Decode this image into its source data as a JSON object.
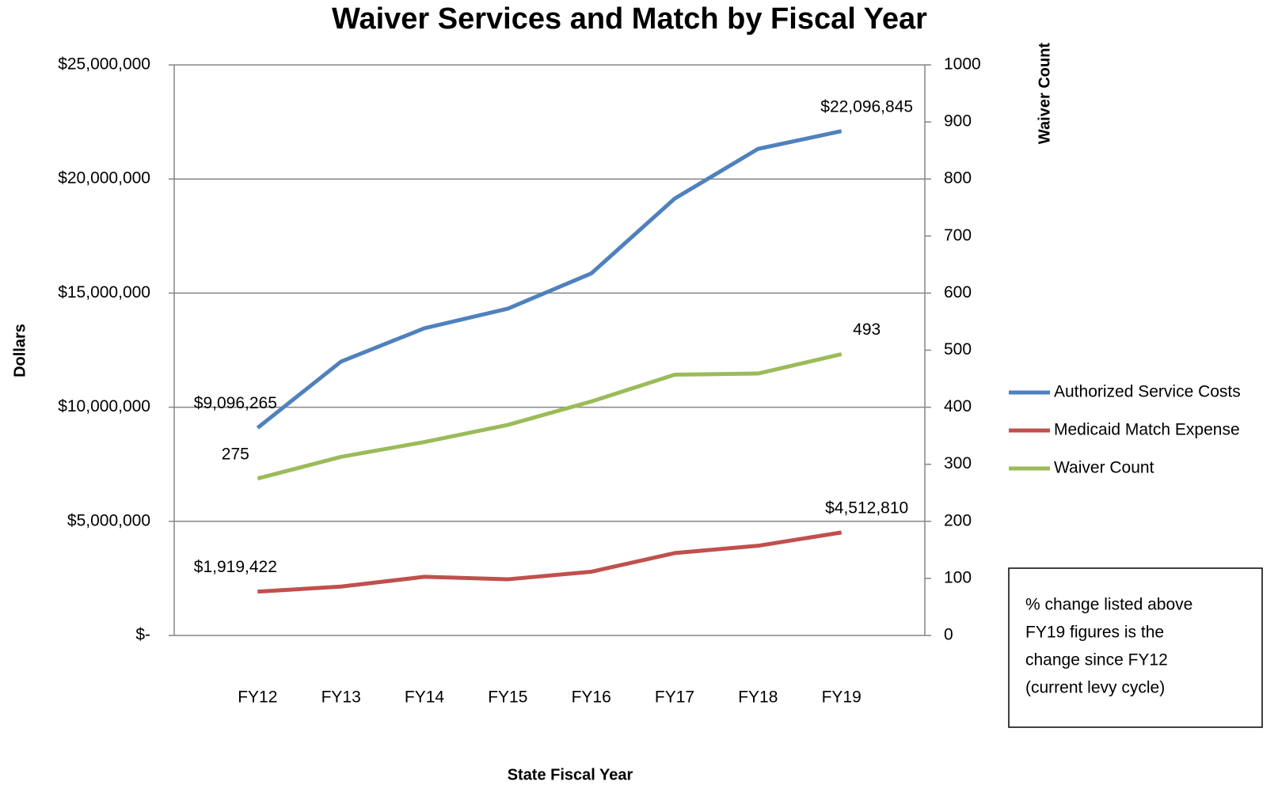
{
  "chart_data": {
    "type": "line",
    "title": "Waiver Services and Match by Fiscal Year",
    "y_label": "Dollars",
    "y2_label": "Waiver Count",
    "x_label": "State Fiscal Year",
    "categories": [
      "FY12",
      "FY13",
      "FY14",
      "FY15",
      "FY16",
      "FY17",
      "FY18",
      "FY19"
    ],
    "series": [
      {
        "name": "Authorized Service Costs",
        "color": "#4f81bd",
        "values": [
          9096265,
          12000000,
          13460000,
          14320000,
          15860000,
          19140000,
          21320000,
          22096845
        ],
        "value_labels": [
          "$9,096,265",
          null,
          null,
          null,
          null,
          null,
          null,
          "$22,096,845"
        ]
      },
      {
        "name": "Medicaid Match Expense",
        "color": "#c0504d",
        "values": [
          1919422,
          2140000,
          2570000,
          2460000,
          2790000,
          3610000,
          3930000,
          4512810
        ],
        "value_labels": [
          "$1,919,422",
          null,
          null,
          null,
          null,
          null,
          null,
          "$4,512,810"
        ]
      },
      {
        "name": "Waiver Count",
        "color": "#9bbb59",
        "axis": "y2",
        "values": [
          275,
          313,
          339,
          369,
          410,
          457,
          459,
          493
        ],
        "value_labels": [
          "275",
          null,
          null,
          null,
          null,
          null,
          null,
          "493"
        ]
      }
    ],
    "ylim": [
      0,
      25000000
    ],
    "yticks": [
      {
        "value": 0,
        "label": "$-"
      },
      {
        "value": 5000000,
        "label": "$5,000,000"
      },
      {
        "value": 10000000,
        "label": "$10,000,000"
      },
      {
        "value": 15000000,
        "label": "$15,000,000"
      },
      {
        "value": 20000000,
        "label": "$20,000,000"
      },
      {
        "value": 25000000,
        "label": "$25,000,000"
      }
    ],
    "y2lim": [
      0,
      1000
    ],
    "y2ticks": [
      0,
      100,
      200,
      300,
      400,
      500,
      600,
      700,
      800,
      900,
      1000
    ],
    "grid": true,
    "legend": "right",
    "annotation": [
      "% change listed above",
      "FY19 figures is the",
      "change since FY12",
      "(current levy cycle)"
    ]
  }
}
